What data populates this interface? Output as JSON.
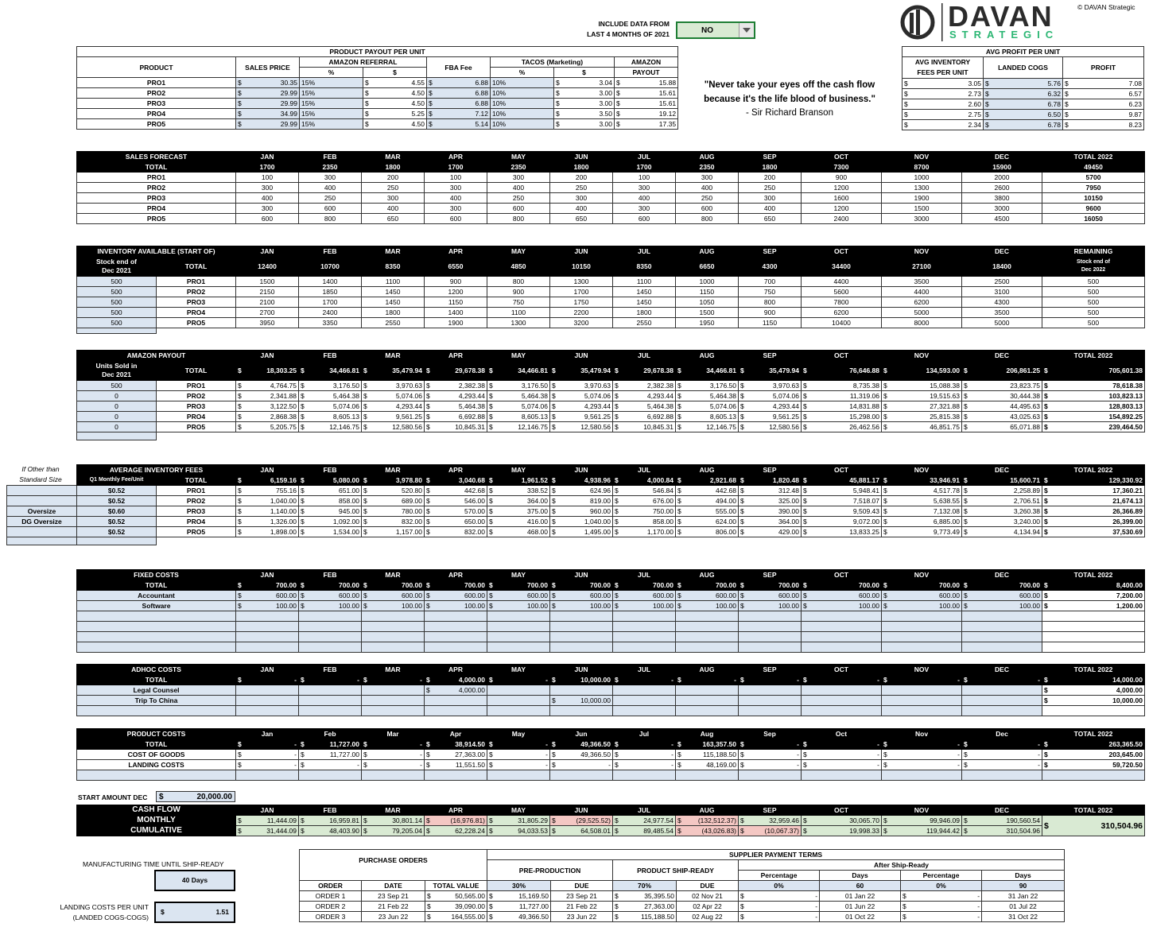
{
  "header": {
    "include_label_1": "INCLUDE DATA FROM",
    "include_label_2": "LAST 4 MONTHS OF 2021",
    "include_value": "NO",
    "copyright": "© DAVAN Strategic",
    "logo_main": "DAVAN",
    "logo_sub": "STRATEGIC"
  },
  "quote": {
    "line1": "\"Never take your eyes off the cash flow",
    "line2": "because it's the life blood of business.\"",
    "author": "- Sir Richard Branson"
  },
  "payout": {
    "title": "PRODUCT PAYOUT PER UNIT",
    "h_product": "PRODUCT",
    "h_sales": "SALES PRICE",
    "h_amazon": "AMAZON REFERRAL",
    "h_pct": "%",
    "h_usd": "$",
    "h_fba": "FBA Fee",
    "h_tacos": "TACOS (Marketing)",
    "h_payout1": "AMAZON",
    "h_payout2": "PAYOUT",
    "rows": [
      [
        "PRO1",
        "30.35",
        "15%",
        "4.55",
        "6.88",
        "10%",
        "3.04",
        "15.88"
      ],
      [
        "PRO2",
        "29.99",
        "15%",
        "4.50",
        "6.88",
        "10%",
        "3.00",
        "15.61"
      ],
      [
        "PRO3",
        "29.99",
        "15%",
        "4.50",
        "6.88",
        "10%",
        "3.00",
        "15.61"
      ],
      [
        "PRO4",
        "34.99",
        "15%",
        "5.25",
        "7.12",
        "10%",
        "3.50",
        "19.12"
      ],
      [
        "PRO5",
        "29.99",
        "15%",
        "4.50",
        "5.14",
        "10%",
        "3.00",
        "17.35"
      ]
    ]
  },
  "profit": {
    "title": "AVG PROFIT PER UNIT",
    "h1a": "AVG INVENTORY",
    "h1b": "FEES PER UNIT",
    "h2": "LANDED COGS",
    "h3": "PROFIT",
    "rows": [
      [
        "3.05",
        "5.76",
        "7.08"
      ],
      [
        "2.73",
        "6.32",
        "6.57"
      ],
      [
        "2.60",
        "6.78",
        "6.23"
      ],
      [
        "2.75",
        "6.50",
        "9.87"
      ],
      [
        "2.34",
        "6.78",
        "8.23"
      ]
    ]
  },
  "months": [
    "JAN",
    "FEB",
    "MAR",
    "APR",
    "MAY",
    "JUN",
    "JUL",
    "AUG",
    "SEP",
    "OCT",
    "NOV",
    "DEC"
  ],
  "months_lc": [
    "Jan",
    "Feb",
    "Mar",
    "Apr",
    "May",
    "Jun",
    "Jul",
    "Aug",
    "Sep",
    "Oct",
    "Nov",
    "Dec"
  ],
  "products": [
    "PRO1",
    "PRO2",
    "PRO3",
    "PRO4",
    "PRO5"
  ],
  "forecast": {
    "title": "SALES FORECAST",
    "total_label": "TOTAL",
    "total_col": "TOTAL 2022",
    "totals": [
      "1700",
      "2350",
      "1800",
      "1700",
      "2350",
      "1800",
      "1700",
      "2350",
      "1800",
      "7300",
      "8700",
      "15900",
      "49450"
    ],
    "rows": [
      [
        "100",
        "300",
        "200",
        "100",
        "300",
        "200",
        "100",
        "300",
        "200",
        "900",
        "1000",
        "2000",
        "5700"
      ],
      [
        "300",
        "400",
        "250",
        "300",
        "400",
        "250",
        "300",
        "400",
        "250",
        "1200",
        "1300",
        "2600",
        "7950"
      ],
      [
        "400",
        "250",
        "300",
        "400",
        "250",
        "300",
        "400",
        "250",
        "300",
        "1600",
        "1900",
        "3800",
        "10150"
      ],
      [
        "300",
        "600",
        "400",
        "300",
        "600",
        "400",
        "300",
        "600",
        "400",
        "1200",
        "1500",
        "3000",
        "9600"
      ],
      [
        "600",
        "800",
        "650",
        "600",
        "800",
        "650",
        "600",
        "800",
        "650",
        "2400",
        "3000",
        "4500",
        "16050"
      ]
    ]
  },
  "inventory": {
    "title": "INVENTORY AVAILABLE  (START OF)",
    "stock1": "Stock end of",
    "stock2": "Dec 2021",
    "total_label": "TOTAL",
    "rem1": "REMAINING",
    "rem2": "Stock end of",
    "rem3": "Dec 2022",
    "totals": [
      "12400",
      "10700",
      "8350",
      "6550",
      "4850",
      "10150",
      "8350",
      "6650",
      "4300",
      "34400",
      "27100",
      "18400"
    ],
    "rows": [
      [
        "500",
        "1500",
        "1400",
        "1100",
        "900",
        "800",
        "1300",
        "1100",
        "1000",
        "700",
        "4400",
        "3500",
        "2500",
        "500"
      ],
      [
        "500",
        "2150",
        "1850",
        "1450",
        "1200",
        "900",
        "1700",
        "1450",
        "1150",
        "750",
        "5600",
        "4400",
        "3100",
        "500"
      ],
      [
        "500",
        "2100",
        "1700",
        "1450",
        "1150",
        "750",
        "1750",
        "1450",
        "1050",
        "800",
        "7800",
        "6200",
        "4300",
        "500"
      ],
      [
        "500",
        "2700",
        "2400",
        "1800",
        "1400",
        "1100",
        "2200",
        "1800",
        "1500",
        "900",
        "6200",
        "5000",
        "3500",
        "500"
      ],
      [
        "500",
        "3950",
        "3350",
        "2550",
        "1900",
        "1300",
        "3200",
        "2550",
        "1950",
        "1150",
        "10400",
        "8000",
        "5000",
        "500"
      ]
    ]
  },
  "amazon": {
    "title": "AMAZON PAYOUT",
    "u1": "Units Sold in",
    "u2": "Dec 2021",
    "total_label": "TOTAL",
    "total_col": "TOTAL 2022",
    "totals": [
      "18,303.25",
      "34,466.81",
      "35,479.94",
      "29,678.38",
      "34,466.81",
      "35,479.94",
      "29,678.38",
      "34,466.81",
      "35,479.94",
      "76,646.88",
      "134,593.00",
      "206,861.25",
      "705,601.38"
    ],
    "rows": [
      [
        "500",
        "4,764.75",
        "3,176.50",
        "3,970.63",
        "2,382.38",
        "3,176.50",
        "3,970.63",
        "2,382.38",
        "3,176.50",
        "3,970.63",
        "8,735.38",
        "15,088.38",
        "23,823.75",
        "78,618.38"
      ],
      [
        "0",
        "2,341.88",
        "5,464.38",
        "5,074.06",
        "4,293.44",
        "5,464.38",
        "5,074.06",
        "4,293.44",
        "5,464.38",
        "5,074.06",
        "11,319.06",
        "19,515.63",
        "30,444.38",
        "103,823.13"
      ],
      [
        "0",
        "3,122.50",
        "5,074.06",
        "4,293.44",
        "5,464.38",
        "5,074.06",
        "4,293.44",
        "5,464.38",
        "5,074.06",
        "4,293.44",
        "14,831.88",
        "27,321.88",
        "44,495.63",
        "128,803.13"
      ],
      [
        "0",
        "2,868.38",
        "8,605.13",
        "9,561.25",
        "6,692.88",
        "8,605.13",
        "9,561.25",
        "6,692.88",
        "8,605.13",
        "9,561.25",
        "15,298.00",
        "25,815.38",
        "43,025.63",
        "154,892.25"
      ],
      [
        "0",
        "5,205.75",
        "12,146.75",
        "12,580.56",
        "10,845.31",
        "12,146.75",
        "12,580.56",
        "10,845.31",
        "12,146.75",
        "12,580.56",
        "26,462.56",
        "46,851.75",
        "65,071.88",
        "239,464.50"
      ]
    ]
  },
  "avginv": {
    "title": "AVERAGE INVENTORY FEES",
    "q1": "Q1 Monthly Fee/Unit",
    "total_label": "TOTAL",
    "total_col": "TOTAL 2022",
    "side1": "If Other than",
    "side2": "Standard Size",
    "side_labels": [
      "",
      "",
      "Oversize",
      "DG Oversize",
      ""
    ],
    "totals": [
      "6,159.16",
      "5,080.00",
      "3,978.80",
      "3,040.68",
      "1,961.52",
      "4,938.96",
      "4,000.84",
      "2,921.68",
      "1,820.48",
      "45,881.17",
      "33,946.91",
      "15,600.71",
      "129,330.92"
    ],
    "rows": [
      [
        "$0.52",
        "755.16",
        "651.00",
        "520.80",
        "442.68",
        "338.52",
        "624.96",
        "546.84",
        "442.68",
        "312.48",
        "5,948.41",
        "4,517.78",
        "2,258.89",
        "17,360.21"
      ],
      [
        "$0.52",
        "1,040.00",
        "858.00",
        "689.00",
        "546.00",
        "364.00",
        "819.00",
        "676.00",
        "494.00",
        "325.00",
        "7,518.07",
        "5,638.55",
        "2,706.51",
        "21,674.13"
      ],
      [
        "$0.60",
        "1,140.00",
        "945.00",
        "780.00",
        "570.00",
        "375.00",
        "960.00",
        "750.00",
        "555.00",
        "390.00",
        "9,509.43",
        "7,132.08",
        "3,260.38",
        "26,366.89"
      ],
      [
        "$0.52",
        "1,326.00",
        "1,092.00",
        "832.00",
        "650.00",
        "416.00",
        "1,040.00",
        "858.00",
        "624.00",
        "364.00",
        "9,072.00",
        "6,885.00",
        "3,240.00",
        "26,399.00"
      ],
      [
        "$0.52",
        "1,898.00",
        "1,534.00",
        "1,157.00",
        "832.00",
        "468.00",
        "1,495.00",
        "1,170.00",
        "806.00",
        "429.00",
        "13,833.25",
        "9,773.49",
        "4,134.94",
        "37,530.69"
      ]
    ]
  },
  "fixed": {
    "title": "FIXED COSTS",
    "total_label": "TOTAL",
    "total_col": "TOTAL 2022",
    "totals": [
      "700.00",
      "700.00",
      "700.00",
      "700.00",
      "700.00",
      "700.00",
      "700.00",
      "700.00",
      "700.00",
      "700.00",
      "700.00",
      "700.00",
      "8,400.00"
    ],
    "rows": [
      [
        "Accountant",
        "600.00",
        "7,200.00"
      ],
      [
        "Software",
        "100.00",
        "1,200.00"
      ]
    ]
  },
  "adhoc": {
    "title": "ADHOC COSTS",
    "total_label": "TOTAL",
    "total_col": "TOTAL 2022",
    "totals": [
      "-",
      "-",
      "-",
      "4,000.00",
      "-",
      "10,000.00",
      "-",
      "-",
      "-",
      "-",
      "-",
      "-",
      "14,000.00"
    ],
    "rows": [
      [
        "Legal Counsel",
        "",
        "",
        "",
        "4,000.00",
        "",
        "",
        "",
        "",
        "",
        "",
        "",
        "",
        "4,000.00"
      ],
      [
        "Trip To China",
        "",
        "",
        "",
        "",
        "",
        "10,000.00",
        "",
        "",
        "",
        "",
        "",
        "",
        "10,000.00"
      ]
    ]
  },
  "prodcosts": {
    "title": "PRODUCT COSTS",
    "total_label": "TOTAL",
    "total_col": "TOTAL 2022",
    "totals": [
      "-",
      "11,727.00",
      "-",
      "38,914.50",
      "-",
      "49,366.50",
      "-",
      "163,357.50",
      "-",
      "-",
      "-",
      "-",
      "263,365.50"
    ],
    "rows": [
      [
        "COST OF GOODS",
        "-",
        "11,727.00",
        "-",
        "27,363.00",
        "-",
        "49,366.50",
        "-",
        "115,188.50",
        "-",
        "-",
        "-",
        "-",
        "203,645.00"
      ],
      [
        "LANDING COSTS",
        "-",
        "-",
        "-",
        "11,551.50",
        "-",
        "-",
        "-",
        "48,169.00",
        "-",
        "-",
        "-",
        "-",
        "59,720.50"
      ]
    ]
  },
  "cash": {
    "start_label": "START AMOUNT DEC",
    "start_value": "20,000.00",
    "title": "CASH FLOW",
    "monthly": "MONTHLY",
    "cumulative": "CUMULATIVE",
    "total_col": "TOTAL 2022",
    "monthly_vals": [
      "11,444.09",
      "16,959.81",
      "30,801.14",
      "(16,976.81)",
      "31,805.29",
      "(29,525.52)",
      "24,977.54",
      "(132,512.37)",
      "32,959.46",
      "30,065.70",
      "99,946.09",
      "190,560.54"
    ],
    "cumulative_vals": [
      "31,444.09",
      "48,403.90",
      "79,205.04",
      "62,228.24",
      "94,033.53",
      "64,508.01",
      "89,485.54",
      "(43,026.83)",
      "(10,067.37)",
      "19,998.33",
      "119,944.42",
      "310,504.96"
    ],
    "total": "310,504.96"
  },
  "side": {
    "mfg_label": "MANUFACTURING TIME UNTIL SHIP-READY",
    "mfg_value": "40 Days",
    "land1": "LANDING COSTS PER UNIT",
    "land2": "(LANDED COGS-COGS)",
    "land_value": "1.51"
  },
  "po": {
    "title": "PURCHASE ORDERS",
    "terms": "SUPPLIER PAYMENT TERMS",
    "pre": "PRE-PRODUCTION",
    "ship": "PRODUCT SHIP-READY",
    "after": "After Ship-Ready",
    "h_order": "ORDER",
    "h_date": "DATE",
    "h_total": "TOTAL VALUE",
    "h_pct30": "30%",
    "h_due": "DUE",
    "h_pct70": "70%",
    "h_percentage": "Percentage",
    "h_days": "Days",
    "p0a": "0%",
    "d60": "60",
    "p0b": "0%",
    "d90": "90",
    "rows": [
      [
        "ORDER 1",
        "23 Sep 21",
        "50,565.00",
        "15,169.50",
        "23 Sep 21",
        "35,395.50",
        "02 Nov 21",
        "-",
        "01 Jan 22",
        "-",
        "31 Jan 22"
      ],
      [
        "ORDER 2",
        "21 Feb 22",
        "39,090.00",
        "11,727.00",
        "21 Feb 22",
        "27,363.00",
        "02 Apr 22",
        "-",
        "01 Jun 22",
        "-",
        "01 Jul 22"
      ],
      [
        "ORDER 3",
        "23 Jun 22",
        "164,555.00",
        "49,366.50",
        "23 Jun 22",
        "115,188.50",
        "02 Aug 22",
        "-",
        "01 Oct 22",
        "-",
        "31 Oct 22"
      ]
    ]
  }
}
